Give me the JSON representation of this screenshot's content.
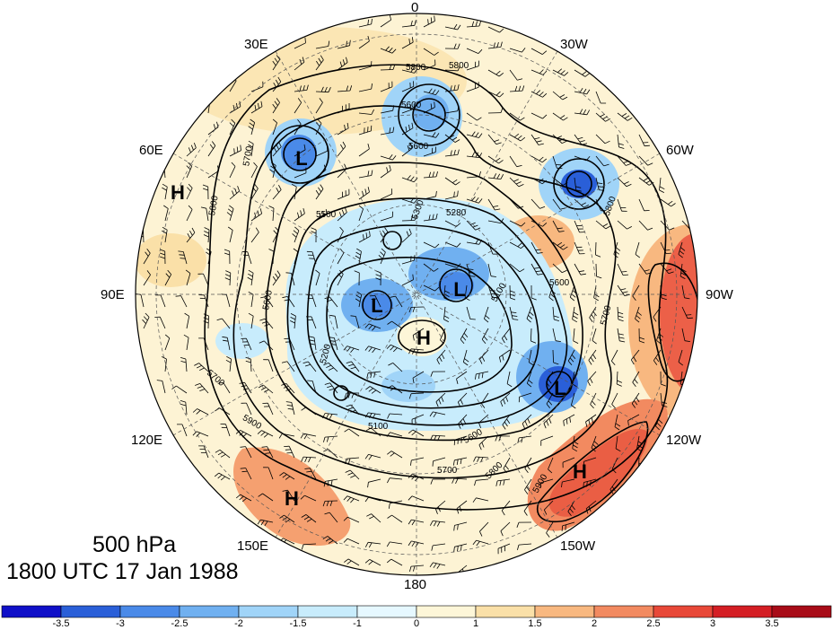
{
  "title": {
    "level": "500 hPa",
    "datetime": "1800 UTC 17 Jan 1988"
  },
  "longitude_labels": {
    "lon_0": "0",
    "lon_30w": "30W",
    "lon_60w": "60W",
    "lon_90w": "90W",
    "lon_120w": "120W",
    "lon_150w": "150W",
    "lon_180": "180",
    "lon_150e": "150E",
    "lon_120e": "120E",
    "lon_90e": "90E",
    "lon_60e": "60E",
    "lon_30e": "30E"
  },
  "pressure_centers": [
    {
      "label": "L"
    },
    {
      "label": "L"
    },
    {
      "label": "L"
    },
    {
      "label": "L"
    },
    {
      "label": "H"
    },
    {
      "label": "H"
    },
    {
      "label": "H"
    },
    {
      "label": "H"
    }
  ],
  "contour_labels": [
    "5800",
    "5800",
    "5600",
    "5600",
    "5700",
    "5800",
    "5500",
    "5300",
    "5280",
    "5100",
    "5600",
    "5700",
    "5200",
    "5100",
    "5600",
    "5700",
    "5800",
    "5900",
    "5900",
    "5800",
    "5600",
    "5700"
  ],
  "colorbar": {
    "ticks": [
      "-3.5",
      "-3",
      "-2.5",
      "-2",
      "-1.5",
      "-1",
      "0",
      "1",
      "1.5",
      "2",
      "2.5",
      "3",
      "3.5"
    ],
    "colors": [
      "#1010c8",
      "#2a5fd8",
      "#4a8ae8",
      "#70b0f0",
      "#a0d4f8",
      "#c8ecfc",
      "#e6f8ff",
      "#fdf6d8",
      "#fae0a8",
      "#f8b880",
      "#f28a60",
      "#e84838",
      "#d41e24",
      "#a80c18"
    ]
  }
}
